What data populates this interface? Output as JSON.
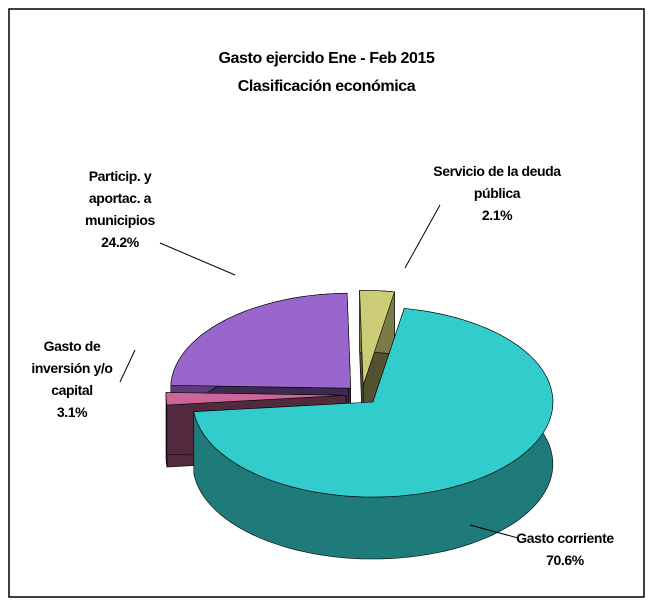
{
  "chart_data": {
    "type": "pie3d",
    "title": "Gasto ejercido Ene - Feb 2015",
    "subtitle": "Clasificación económica",
    "categories": [
      "Gasto corriente",
      "Servicio de la deuda pública",
      "Particip. y aportac. a municipios",
      "Gasto de inversión y/o capital"
    ],
    "values": [
      70.6,
      2.1,
      24.2,
      3.1
    ],
    "value_labels": [
      "70.6%",
      "2.1%",
      "24.2%",
      "3.1%"
    ],
    "colors": [
      "#33cccc",
      "#cc6699",
      "#9966cc",
      "#cccc77"
    ]
  }
}
